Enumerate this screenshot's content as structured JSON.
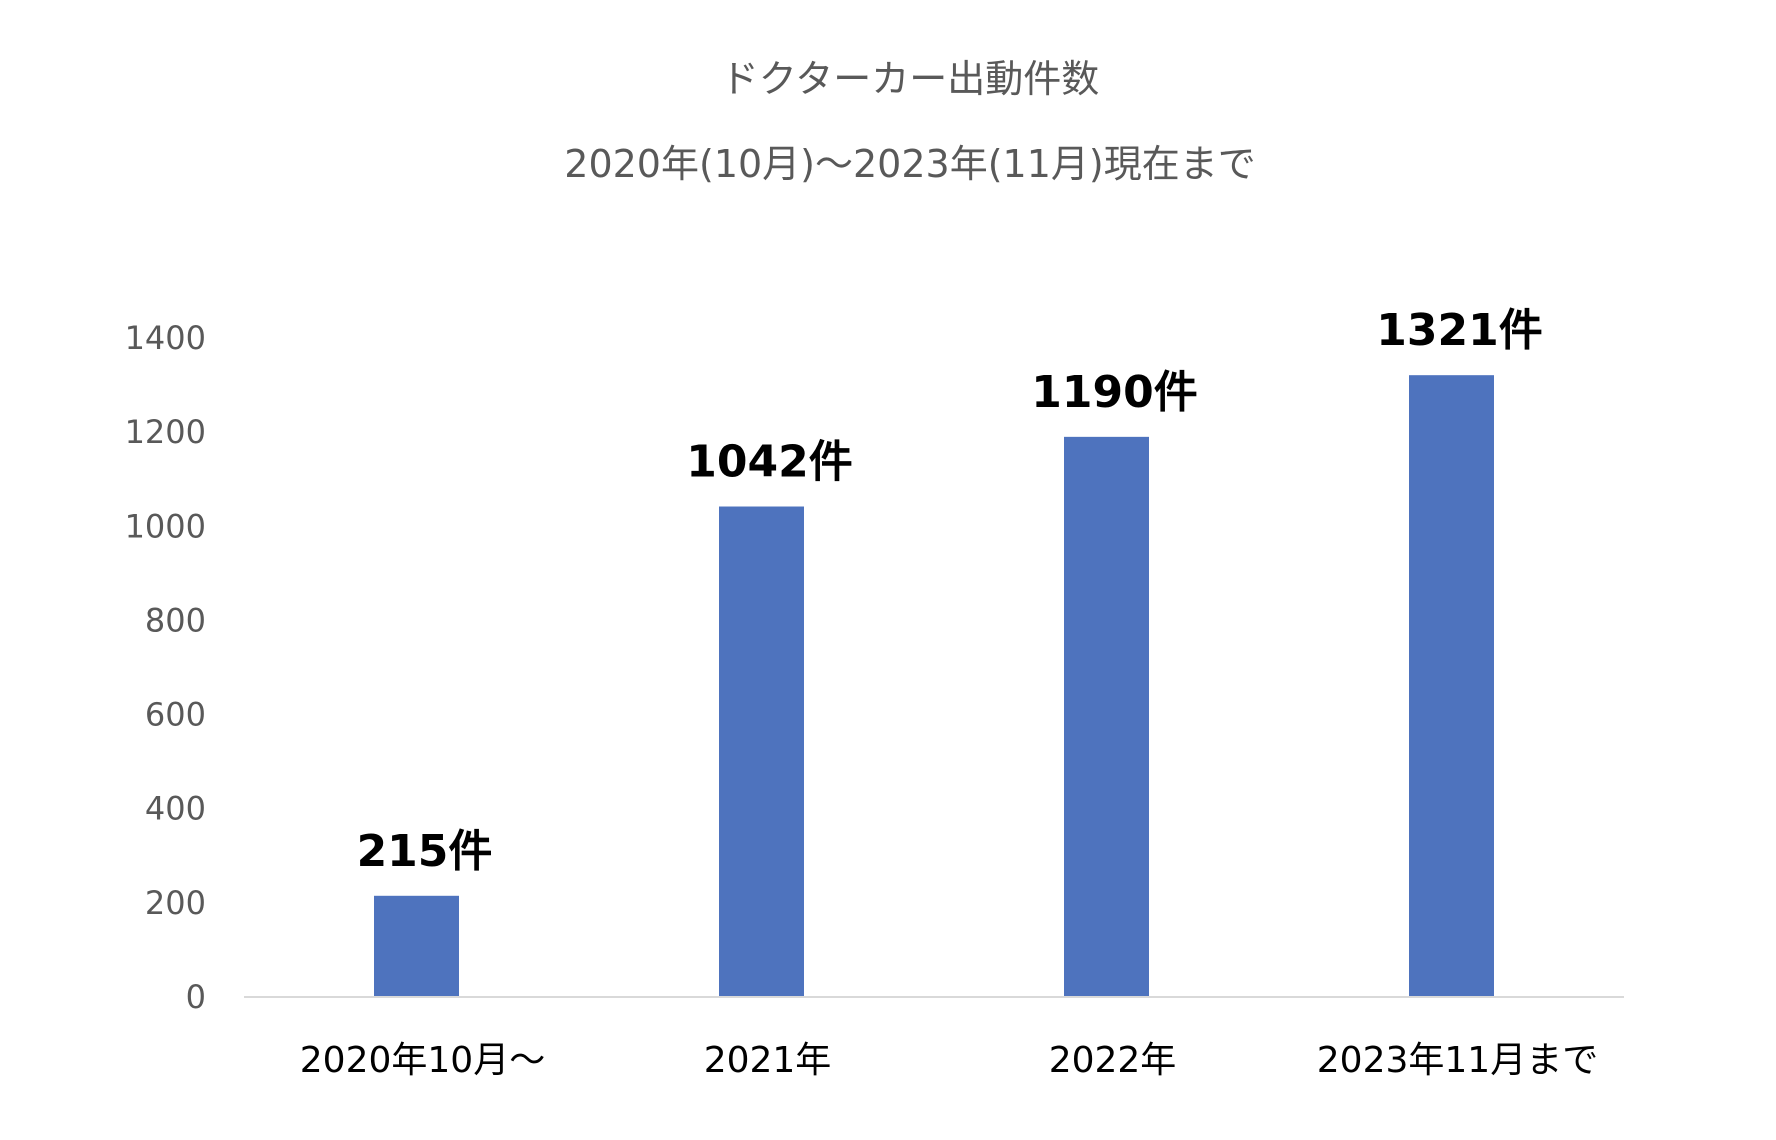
{
  "chart_data": {
    "type": "bar",
    "title": "ドクターカー出動件数",
    "subtitle": "2020年(10月)～2023年(11月)現在まで",
    "categories": [
      "2020年10月～",
      "2021年",
      "2022年",
      "2023年11月まで"
    ],
    "values": [
      215,
      1042,
      1190,
      1321
    ],
    "data_labels": [
      "215件",
      "1042件",
      "1190件",
      "1321件"
    ],
    "xlabel": "",
    "ylabel": "",
    "ylim": [
      0,
      1400
    ],
    "yticks": [
      "0",
      "200",
      "400",
      "600",
      "800",
      "1000",
      "1200",
      "1400"
    ],
    "grid": false,
    "legend": "none",
    "bar_color": "#4E73BE",
    "axis_color": "#D9D9D9"
  }
}
